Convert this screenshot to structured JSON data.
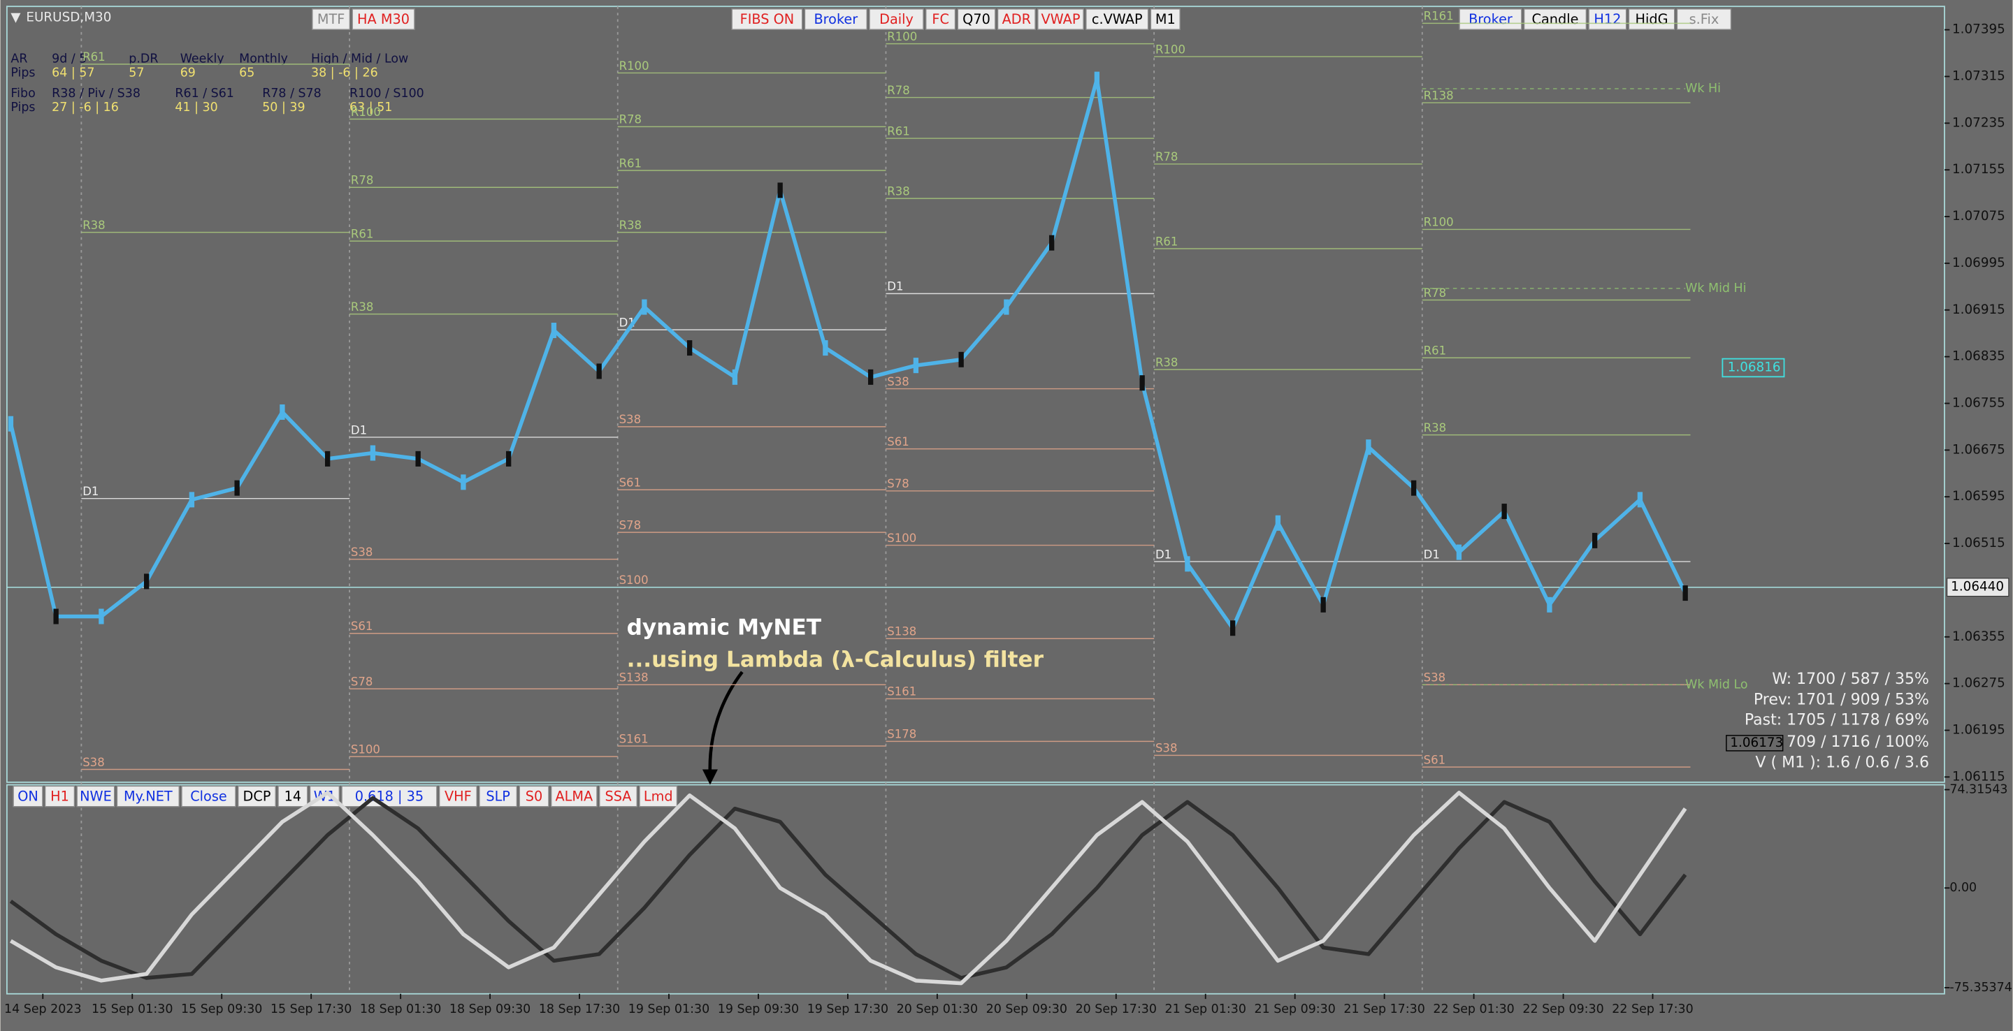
{
  "window": {
    "symbol": "EURUSD,M30"
  },
  "toolbar_top": {
    "left": [
      {
        "label": "MTF",
        "color": "#888888"
      },
      {
        "label": "HA M30",
        "color": "#e02020"
      }
    ],
    "center": [
      {
        "label": "FIBS ON",
        "color": "#e02020"
      },
      {
        "label": "Broker",
        "color": "#1030e0"
      },
      {
        "label": "Daily",
        "color": "#e02020"
      },
      {
        "label": "FC",
        "color": "#e02020"
      },
      {
        "label": "Q70",
        "color": "#000000"
      },
      {
        "label": "ADR",
        "color": "#e02020"
      },
      {
        "label": "VWAP",
        "color": "#e02020"
      },
      {
        "label": "c.VWAP",
        "color": "#000000"
      },
      {
        "label": "M1",
        "color": "#000000"
      }
    ],
    "right": [
      {
        "label": "Broker",
        "color": "#1030e0"
      },
      {
        "label": "Candle",
        "color": "#000000"
      },
      {
        "label": "H12",
        "color": "#1030e0"
      },
      {
        "label": "HidG",
        "color": "#000000"
      },
      {
        "label": "s.Fix",
        "color": "#888888"
      }
    ]
  },
  "toolbar_bottom": [
    {
      "label": "ON",
      "color": "#1030e0"
    },
    {
      "label": "H1",
      "color": "#e02020"
    },
    {
      "label": "NWE",
      "color": "#1030e0"
    },
    {
      "label": "My.NET",
      "color": "#1030e0"
    },
    {
      "label": "Close",
      "color": "#1030e0"
    },
    {
      "label": "DCP",
      "color": "#000000"
    },
    {
      "label": "14",
      "color": "#000000"
    },
    {
      "label": "W1",
      "color": "#1030e0"
    },
    {
      "label": "0.618 | 35",
      "color": "#1030e0"
    },
    {
      "label": "VHF",
      "color": "#e02020"
    },
    {
      "label": "SLP",
      "color": "#1030e0"
    },
    {
      "label": "S0",
      "color": "#e02020"
    },
    {
      "label": "ALMA",
      "color": "#e02020"
    },
    {
      "label": "SSA",
      "color": "#e02020"
    },
    {
      "label": "Lmd",
      "color": "#e02020"
    }
  ],
  "info_panel": {
    "rows": [
      [
        "AR",
        "9d / 5",
        "p.DR",
        "Weekly",
        "Monthly",
        "High / Mid / Low"
      ],
      [
        "Pips",
        "64 | 57",
        "57",
        "69",
        "65",
        "38 | -6 | 26"
      ],
      [
        "Fibo",
        "R38 / Piv / S38",
        "R61 / S61",
        "R78 / S78",
        "R100 / S100"
      ],
      [
        "Pips",
        "27 | -6 | 16",
        "41 | 30",
        "50 | 39",
        "63 | 51"
      ]
    ]
  },
  "annotation": {
    "title": "dynamic MyNET",
    "subtitle": "...using Lambda (λ-Calculus) filter"
  },
  "stats": {
    "lines": [
      "W: 1700 / 587 / 35%",
      "Prev: 1701 / 909 / 53%",
      "Past: 1705 / 1178 / 69%",
      "709 / 1716 / 100%",
      "V ( M1 ): 1.6 / 0.6 / 3.6"
    ],
    "hist_price": 1.06173
  },
  "time_axis": {
    "labels": [
      "14 Sep 2023",
      "15 Sep 01:30",
      "15 Sep 09:30",
      "15 Sep 17:30",
      "18 Sep 01:30",
      "18 Sep 09:30",
      "18 Sep 17:30",
      "19 Sep 01:30",
      "19 Sep 09:30",
      "19 Sep 17:30",
      "20 Sep 01:30",
      "20 Sep 09:30",
      "20 Sep 17:30",
      "21 Sep 01:30",
      "21 Sep 09:30",
      "21 Sep 17:30",
      "22 Sep 01:30",
      "22 Sep 09:30",
      "22 Sep 17:30"
    ]
  },
  "chart_data": [
    {
      "type": "line",
      "color": "#4fb3e8",
      "values": [
        1.0672,
        1.0639,
        1.0639,
        1.0645,
        1.0659,
        1.0661,
        1.0674,
        1.0666,
        1.0667,
        1.0666,
        1.0662,
        1.0666,
        1.0688,
        1.0681,
        1.0692,
        1.0685,
        1.068,
        1.0712,
        1.0685,
        1.068,
        1.0682,
        1.0683,
        1.0692,
        1.0703,
        1.0731,
        1.0679,
        1.0648,
        1.0637,
        1.0655,
        1.0641,
        1.0668,
        1.0661,
        1.065,
        1.0657,
        1.0641,
        1.0652,
        1.0659,
        1.0643
      ],
      "ylim": [
        1.06106,
        1.07435
      ],
      "yticks": [
        1.07395,
        1.07315,
        1.07235,
        1.07155,
        1.07075,
        1.06995,
        1.06915,
        1.06835,
        1.06755,
        1.06675,
        1.06595,
        1.06515,
        1.06355,
        1.06275,
        1.06195,
        1.06115
      ],
      "current_price": {
        "value": 1.0644,
        "label": "1.06440"
      },
      "marker_price": 1.06816,
      "level_colors": {
        "R": "#a9c97c",
        "S": "#e0a48a",
        "D": "#f0f0f0"
      },
      "day_levels": [
        [
          {
            "label": "R61",
            "value": 1.07336
          },
          {
            "label": "R38",
            "value": 1.07048
          },
          {
            "label": "D1",
            "value": 1.06592
          },
          {
            "label": "S38",
            "value": 1.06128
          }
        ],
        [
          {
            "label": "R100",
            "value": 1.07242
          },
          {
            "label": "R78",
            "value": 1.07125
          },
          {
            "label": "R61",
            "value": 1.07033
          },
          {
            "label": "R38",
            "value": 1.06908
          },
          {
            "label": "D1",
            "value": 1.06697
          },
          {
            "label": "S38",
            "value": 1.06488
          },
          {
            "label": "S61",
            "value": 1.06361
          },
          {
            "label": "S78",
            "value": 1.06266
          },
          {
            "label": "S100",
            "value": 1.0615
          }
        ],
        [
          {
            "label": "R100",
            "value": 1.07321
          },
          {
            "label": "R78",
            "value": 1.07229
          },
          {
            "label": "R61",
            "value": 1.07154
          },
          {
            "label": "R38",
            "value": 1.07048
          },
          {
            "label": "D1",
            "value": 1.06881
          },
          {
            "label": "S38",
            "value": 1.06715
          },
          {
            "label": "S61",
            "value": 1.06607
          },
          {
            "label": "S78",
            "value": 1.06534
          },
          {
            "label": "S100",
            "value": 1.0644
          },
          {
            "label": "S138",
            "value": 1.06273
          },
          {
            "label": "S161",
            "value": 1.06168
          }
        ],
        [
          {
            "label": "R100",
            "value": 1.07371
          },
          {
            "label": "R78",
            "value": 1.07279
          },
          {
            "label": "R61",
            "value": 1.07209
          },
          {
            "label": "R38",
            "value": 1.07106
          },
          {
            "label": "D1",
            "value": 1.06943
          },
          {
            "label": "S38",
            "value": 1.0678
          },
          {
            "label": "S61",
            "value": 1.06677
          },
          {
            "label": "S78",
            "value": 1.06605
          },
          {
            "label": "S100",
            "value": 1.06512
          },
          {
            "label": "S138",
            "value": 1.06352
          },
          {
            "label": "S161",
            "value": 1.06249
          },
          {
            "label": "S178",
            "value": 1.06176
          }
        ],
        [
          {
            "label": "R100",
            "value": 1.07349
          },
          {
            "label": "R78",
            "value": 1.07165
          },
          {
            "label": "R61",
            "value": 1.0702
          },
          {
            "label": "R38",
            "value": 1.06813
          },
          {
            "label": "D1",
            "value": 1.06484
          },
          {
            "label": "S38",
            "value": 1.06152
          }
        ],
        [
          {
            "label": "R161",
            "value": 1.07406
          },
          {
            "label": "R138",
            "value": 1.0727
          },
          {
            "label": "R100",
            "value": 1.07053
          },
          {
            "label": "R78",
            "value": 1.06932
          },
          {
            "label": "R61",
            "value": 1.06833
          },
          {
            "label": "R38",
            "value": 1.06701
          },
          {
            "label": "D1",
            "value": 1.06484
          },
          {
            "label": "S38",
            "value": 1.06273
          },
          {
            "label": "S61",
            "value": 1.06132
          }
        ]
      ],
      "week_levels": [
        {
          "label": "Wk Hi",
          "value": 1.07294
        },
        {
          "label": "Wk Mid Hi",
          "value": 1.06952
        },
        {
          "label": "Wk Mid Lo",
          "value": 1.06273
        }
      ]
    },
    {
      "type": "line",
      "series": [
        {
          "color": "#2e2e2e",
          "values": [
            -10,
            -35,
            -55,
            -68,
            -65,
            -30,
            5,
            40,
            68,
            45,
            10,
            -25,
            -55,
            -50,
            -15,
            25,
            60,
            50,
            10,
            -20,
            -50,
            -68,
            -60,
            -35,
            0,
            40,
            65,
            40,
            0,
            -45,
            -50,
            -10,
            30,
            65,
            50,
            5,
            -35,
            10
          ]
        },
        {
          "color": "#d8d8d8",
          "values": [
            -40,
            -60,
            -70,
            -65,
            -20,
            15,
            50,
            72,
            40,
            5,
            -35,
            -60,
            -45,
            -5,
            35,
            70,
            45,
            0,
            -20,
            -55,
            -70,
            -72,
            -40,
            0,
            40,
            65,
            35,
            -10,
            -55,
            -40,
            0,
            40,
            72,
            45,
            0,
            -40,
            10,
            60
          ]
        }
      ],
      "ylim": [
        -80,
        78
      ],
      "yticks": [
        74.31543,
        {
          "value": 0,
          "label": "0.00"
        },
        -75.35374
      ]
    }
  ]
}
